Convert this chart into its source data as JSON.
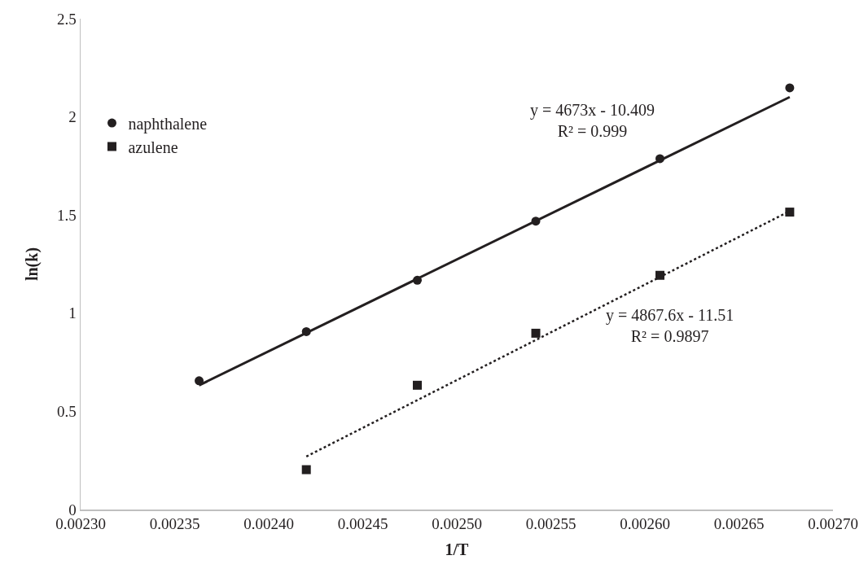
{
  "chart_data": {
    "type": "scatter",
    "xlabel": "1/T",
    "ylabel": "ln(k)",
    "xlim": [
      0.0023,
      0.0027
    ],
    "xticks": [
      {
        "value": 0.0023,
        "label": "0.00230"
      },
      {
        "value": 0.00235,
        "label": "0.00235"
      },
      {
        "value": 0.0024,
        "label": "0.00240"
      },
      {
        "value": 0.00245,
        "label": "0.00245"
      },
      {
        "value": 0.0025,
        "label": "0.00250"
      },
      {
        "value": 0.00255,
        "label": "0.00255"
      },
      {
        "value": 0.0026,
        "label": "0.00260"
      },
      {
        "value": 0.00265,
        "label": "0.00265"
      },
      {
        "value": 0.0027,
        "label": "0.00270"
      }
    ],
    "ylim": [
      0,
      2.5
    ],
    "yticks": [
      0,
      0.5,
      1,
      1.5,
      2,
      2.5
    ],
    "grid": false,
    "legend": "top left",
    "series": [
      {
        "name": "naphthalene",
        "marker": "circle",
        "color": "#231f20",
        "x": [
          0.002363,
          0.00242,
          0.002479,
          0.002542,
          0.002608,
          0.002677
        ],
        "values": [
          0.656,
          0.906,
          1.168,
          1.469,
          1.787,
          2.148
        ]
      },
      {
        "name": "azulene",
        "marker": "square",
        "color": "#231f20",
        "x": [
          0.00242,
          0.002479,
          0.002542,
          0.002608,
          0.002677
        ],
        "values": [
          0.203,
          0.633,
          0.898,
          1.193,
          1.515
        ]
      },
      {
        "type": "line",
        "line_style": "solid",
        "color": "#231f20",
        "x": [
          0.002363,
          0.002677
        ],
        "values": [
          0.633,
          2.101
        ]
      },
      {
        "type": "line",
        "line_style": "dotted",
        "color": "#231f20",
        "x": [
          0.00242,
          0.002677
        ],
        "values": [
          0.27,
          1.52
        ]
      }
    ],
    "annotations": [
      "y = 4673x - 10.409\nR² = 0.999",
      "y = 4867.6x - 11.51\nR² = 0.9897"
    ]
  }
}
